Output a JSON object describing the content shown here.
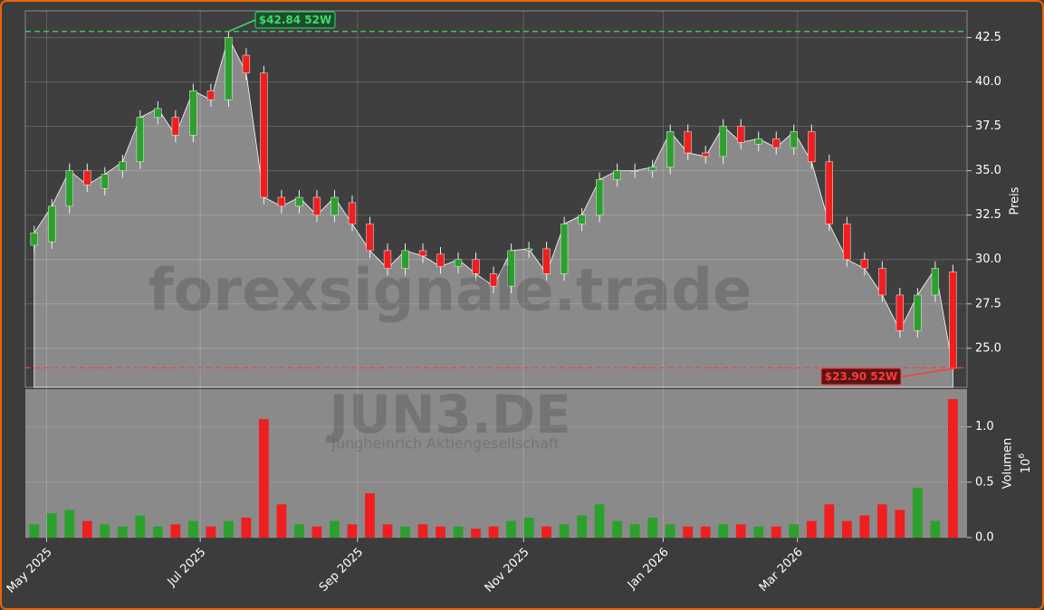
{
  "chart_data": [
    {
      "type": "candlestick",
      "watermark": "forexsignale.trade",
      "ylabel": "Preis",
      "up_color": "#2ca02c",
      "down_color": "#f01e1e",
      "area_color": "#8a8a8a",
      "xlim": [
        -0.5,
        52.8
      ],
      "xticks": [
        {
          "value": 0.7,
          "label": "May 2025"
        },
        {
          "value": 9.4,
          "label": "Jul 2025"
        },
        {
          "value": 18.3,
          "label": "Sep 2025"
        },
        {
          "value": 27.7,
          "label": "Nov 2025"
        },
        {
          "value": 35.6,
          "label": "Jan 2026"
        },
        {
          "value": 43.2,
          "label": "Mar 2026"
        }
      ],
      "ylim": [
        22.8,
        44.0
      ],
      "yticks": [
        {
          "value": 25,
          "label": "25.0"
        },
        27.5,
        {
          "value": 30,
          "label": "30.0"
        },
        32.5,
        {
          "value": 35,
          "label": "35.0"
        },
        37.5,
        {
          "value": 40,
          "label": "40.0"
        },
        42.5
      ],
      "grid": true,
      "open": [
        30.8,
        31,
        33,
        35,
        34,
        35,
        35.5,
        38,
        38,
        37,
        39.5,
        39,
        41.5,
        40.5,
        33.5,
        33,
        33.5,
        32.5,
        33.2,
        32,
        30.5,
        29.5,
        30.5,
        30.3,
        29.6,
        30,
        29.2,
        28.5,
        30.5,
        30.6,
        29.2,
        32,
        32.5,
        34.5,
        35,
        35,
        35.2,
        37.2,
        36,
        35.8,
        37.5,
        36.5,
        36.8,
        36.3,
        37.2,
        35.5,
        32,
        30,
        29.5,
        28,
        26,
        28,
        29.3
      ],
      "high": [
        31.9,
        33.4,
        35.4,
        35.4,
        35.2,
        35.9,
        38.4,
        38.9,
        38.4,
        39.9,
        39.9,
        42.84,
        41.9,
        40.9,
        33.9,
        33.9,
        33.9,
        33.9,
        33.6,
        32.4,
        30.9,
        30.9,
        30.9,
        30.7,
        30.4,
        30.4,
        29.6,
        30.9,
        31,
        31,
        32.4,
        32.9,
        34.9,
        35.4,
        35.4,
        35.6,
        37.6,
        37.6,
        36.4,
        37.9,
        37.9,
        37.2,
        37.2,
        37.6,
        37.6,
        35.9,
        32.4,
        30.4,
        29.9,
        28.4,
        28.4,
        29.9,
        29.7
      ],
      "low": [
        30.4,
        30.6,
        32.6,
        33.8,
        33.6,
        34.6,
        35.1,
        37.6,
        36.6,
        36.6,
        38.6,
        38.6,
        40.1,
        33.1,
        32.6,
        32.6,
        32.1,
        32.1,
        31.6,
        30.1,
        29.1,
        29.1,
        29.8,
        29.2,
        29.2,
        28.8,
        28.1,
        28.1,
        30.1,
        28.8,
        28.8,
        31.6,
        32.1,
        34.1,
        34.6,
        34.6,
        34.8,
        35.6,
        35.4,
        35.4,
        36.2,
        36.1,
        35.9,
        35.9,
        35.1,
        31.6,
        29.6,
        29.1,
        27.6,
        25.6,
        25.6,
        27.6,
        23.9
      ],
      "close": [
        31.5,
        33,
        35,
        34.2,
        34.8,
        35.5,
        38,
        38.5,
        37,
        39.5,
        39,
        42.5,
        40.5,
        33.5,
        33,
        33.5,
        32.5,
        33.5,
        32,
        30.5,
        29.5,
        30.5,
        30.2,
        29.6,
        30,
        29.2,
        28.5,
        30.5,
        30.6,
        29.2,
        32,
        32.5,
        34.5,
        35,
        35,
        35.2,
        37.2,
        36,
        35.8,
        37.5,
        36.6,
        36.8,
        36.3,
        37.2,
        35.5,
        32,
        30,
        29.5,
        28,
        26,
        28,
        29.5,
        23.9
      ],
      "annotations": [
        {
          "text": "$42.84 52W",
          "value": 42.84,
          "color": "#3ddc6e"
        },
        {
          "text": "$23.90 52W",
          "value": 23.9,
          "color": "#ff3b3b"
        }
      ]
    },
    {
      "type": "bar",
      "title": "JUN3.DE",
      "subtitle": "Jungheinrich Aktiengesellschaft",
      "ylabel": "Volumen",
      "scale_base": "10",
      "scale_exponent": "6",
      "ylim": [
        0,
        1.34
      ],
      "yticks": [
        {
          "value": 0,
          "label": "0.0"
        },
        {
          "value": 0.5,
          "label": "0.5"
        },
        {
          "value": 1,
          "label": "1.0"
        }
      ],
      "values": [
        0.12,
        0.22,
        0.25,
        0.15,
        0.12,
        0.1,
        0.2,
        0.1,
        0.12,
        0.15,
        0.1,
        0.15,
        0.18,
        1.07,
        0.3,
        0.12,
        0.1,
        0.15,
        0.12,
        0.4,
        0.12,
        0.1,
        0.12,
        0.1,
        0.1,
        0.08,
        0.1,
        0.15,
        0.18,
        0.1,
        0.12,
        0.2,
        0.3,
        0.15,
        0.12,
        0.18,
        0.12,
        0.1,
        0.1,
        0.12,
        0.12,
        0.1,
        0.1,
        0.12,
        0.15,
        0.3,
        0.15,
        0.2,
        0.3,
        0.25,
        0.45,
        0.15,
        1.25
      ]
    }
  ]
}
